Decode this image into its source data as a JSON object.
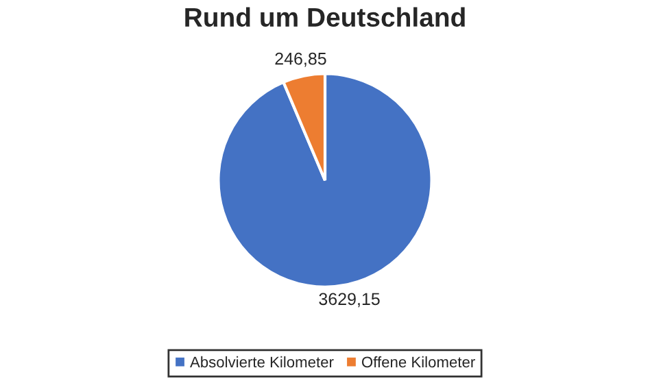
{
  "chart_data": {
    "type": "pie",
    "title": "Rund um Deutschland",
    "categories": [
      "Absolvierte Kilometer",
      "Offene Kilometer"
    ],
    "values": [
      3629.15,
      246.85
    ],
    "colors": [
      "#4472c4",
      "#ed7d31"
    ],
    "value_labels": [
      "3629,15",
      "246,85"
    ],
    "legend": "bottom"
  }
}
